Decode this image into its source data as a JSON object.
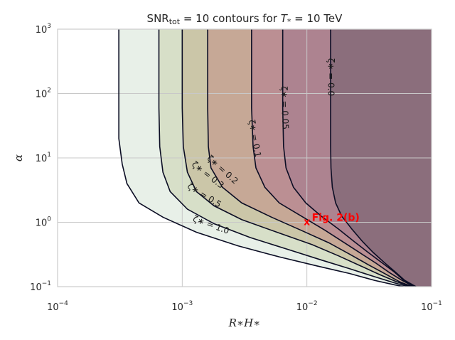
{
  "chart_data": {
    "type": "contour",
    "title": {
      "prefix": "SNR",
      "sub": "tot",
      "mid": " = 10 contours for ",
      "T": "T",
      "Tsub": "*",
      "suffix": " = 10 TeV"
    },
    "xlabel": "R∗H∗",
    "ylabel": "α",
    "xscale": "log",
    "yscale": "log",
    "xlim": [
      0.0001,
      0.1
    ],
    "ylim": [
      0.1,
      1000
    ],
    "grid": true,
    "xticks": [
      {
        "value": 0.0001,
        "base": "10",
        "exp": "−4"
      },
      {
        "value": 0.001,
        "base": "10",
        "exp": "−3"
      },
      {
        "value": 0.01,
        "base": "10",
        "exp": "−2"
      },
      {
        "value": 0.1,
        "base": "10",
        "exp": "−1"
      }
    ],
    "yticks": [
      {
        "value": 0.1,
        "base": "10",
        "exp": "−1"
      },
      {
        "value": 1,
        "base": "10",
        "exp": "0"
      },
      {
        "value": 10,
        "base": "10",
        "exp": "1"
      },
      {
        "value": 100,
        "base": "10",
        "exp": "2"
      },
      {
        "value": 1000,
        "base": "10",
        "exp": "3"
      }
    ],
    "contours": [
      {
        "level": "1.0",
        "label": "ζ∗ = 1.0",
        "fill": "#e8f0e8",
        "points": [
          [
            0.00031,
            1000
          ],
          [
            0.00031,
            60
          ],
          [
            0.00031,
            20
          ],
          [
            0.00033,
            8
          ],
          [
            0.00036,
            4
          ],
          [
            0.00045,
            2
          ],
          [
            0.0007,
            1.2
          ],
          [
            0.0013,
            0.7
          ],
          [
            0.0028,
            0.43
          ],
          [
            0.006,
            0.29
          ],
          [
            0.012,
            0.21
          ],
          [
            0.022,
            0.16
          ],
          [
            0.035,
            0.125
          ],
          [
            0.05,
            0.107
          ],
          [
            0.06,
            0.1
          ]
        ]
      },
      {
        "level": "0.5",
        "label": "ζ∗ = 0.5",
        "fill": "#d7dfc8",
        "points": [
          [
            0.00065,
            1000
          ],
          [
            0.00065,
            60
          ],
          [
            0.00066,
            15
          ],
          [
            0.0007,
            6
          ],
          [
            0.0008,
            3
          ],
          [
            0.0011,
            1.6
          ],
          [
            0.0018,
            0.95
          ],
          [
            0.0035,
            0.58
          ],
          [
            0.007,
            0.38
          ],
          [
            0.013,
            0.26
          ],
          [
            0.022,
            0.19
          ],
          [
            0.034,
            0.145
          ],
          [
            0.05,
            0.115
          ],
          [
            0.065,
            0.1
          ]
        ]
      },
      {
        "level": "0.3",
        "label": "ζ∗ = 0.3",
        "fill": "#cbc6a8",
        "points": [
          [
            0.001,
            1000
          ],
          [
            0.001,
            60
          ],
          [
            0.00102,
            15
          ],
          [
            0.0011,
            6
          ],
          [
            0.0013,
            3
          ],
          [
            0.0018,
            1.8
          ],
          [
            0.003,
            1.1
          ],
          [
            0.006,
            0.68
          ],
          [
            0.011,
            0.45
          ],
          [
            0.018,
            0.3
          ],
          [
            0.027,
            0.21
          ],
          [
            0.038,
            0.155
          ],
          [
            0.052,
            0.12
          ],
          [
            0.068,
            0.1
          ]
        ]
      },
      {
        "level": "0.2",
        "label": "ζ∗ = 0.2",
        "fill": "#c6a896",
        "points": [
          [
            0.0016,
            1000
          ],
          [
            0.0016,
            60
          ],
          [
            0.00162,
            15
          ],
          [
            0.0017,
            7
          ],
          [
            0.0021,
            3.5
          ],
          [
            0.003,
            2
          ],
          [
            0.0052,
            1.2
          ],
          [
            0.009,
            0.75
          ],
          [
            0.015,
            0.48
          ],
          [
            0.022,
            0.32
          ],
          [
            0.031,
            0.22
          ],
          [
            0.042,
            0.16
          ],
          [
            0.055,
            0.12
          ],
          [
            0.07,
            0.1
          ]
        ]
      },
      {
        "level": "0.1",
        "label": "ζ∗ = 0.1",
        "fill": "#bb8f93",
        "points": [
          [
            0.0036,
            1000
          ],
          [
            0.0036,
            60
          ],
          [
            0.0037,
            15
          ],
          [
            0.0039,
            7
          ],
          [
            0.0046,
            3.5
          ],
          [
            0.006,
            2
          ],
          [
            0.009,
            1.25
          ],
          [
            0.014,
            0.75
          ],
          [
            0.02,
            0.48
          ],
          [
            0.027,
            0.33
          ],
          [
            0.036,
            0.23
          ],
          [
            0.046,
            0.165
          ],
          [
            0.058,
            0.125
          ],
          [
            0.072,
            0.1
          ]
        ]
      },
      {
        "level": "0.05",
        "label": "ζ∗ = 0.05",
        "fill": "#ad8390",
        "points": [
          [
            0.0064,
            1000
          ],
          [
            0.0064,
            60
          ],
          [
            0.0065,
            15
          ],
          [
            0.0068,
            7
          ],
          [
            0.0078,
            3.5
          ],
          [
            0.0098,
            2
          ],
          [
            0.013,
            1.25
          ],
          [
            0.018,
            0.78
          ],
          [
            0.024,
            0.5
          ],
          [
            0.031,
            0.34
          ],
          [
            0.04,
            0.235
          ],
          [
            0.05,
            0.17
          ],
          [
            0.06,
            0.125
          ],
          [
            0.074,
            0.1
          ]
        ]
      },
      {
        "level": "0.0",
        "label": "ζ∗ = 0.0",
        "fill": "#8b6e7c",
        "points": [
          [
            0.0155,
            1000
          ],
          [
            0.0155,
            60
          ],
          [
            0.0155,
            15
          ],
          [
            0.0156,
            7
          ],
          [
            0.016,
            3.5
          ],
          [
            0.017,
            2
          ],
          [
            0.019,
            1.25
          ],
          [
            0.023,
            0.78
          ],
          [
            0.028,
            0.5
          ],
          [
            0.034,
            0.34
          ],
          [
            0.042,
            0.235
          ],
          [
            0.051,
            0.17
          ],
          [
            0.061,
            0.125
          ],
          [
            0.075,
            0.1
          ]
        ]
      }
    ],
    "contour_labels": [
      {
        "text": "ζ∗ = 1.0",
        "x": 0.0017,
        "y": 0.9,
        "angle": 20
      },
      {
        "text": "ζ∗ = 0.5",
        "x": 0.0015,
        "y": 2.6,
        "angle": 32
      },
      {
        "text": "ζ∗ = 0.3",
        "x": 0.0016,
        "y": 5.4,
        "angle": 38
      },
      {
        "text": "ζ∗ = 0.2",
        "x": 0.0021,
        "y": 6.5,
        "angle": 42
      },
      {
        "text": "ζ∗ = 0.1",
        "x": 0.0038,
        "y": 20,
        "angle": 80
      },
      {
        "text": "ζ∗ = 0.05",
        "x": 0.0066,
        "y": 60,
        "angle": 88
      },
      {
        "text": "ζ∗ = 0.0",
        "x": 0.0155,
        "y": 180,
        "angle": 90
      }
    ],
    "annotation": {
      "text": "Fig. 2(b)",
      "marker": "x",
      "x": 0.01,
      "y": 1.0,
      "color": "#ff0000"
    }
  }
}
